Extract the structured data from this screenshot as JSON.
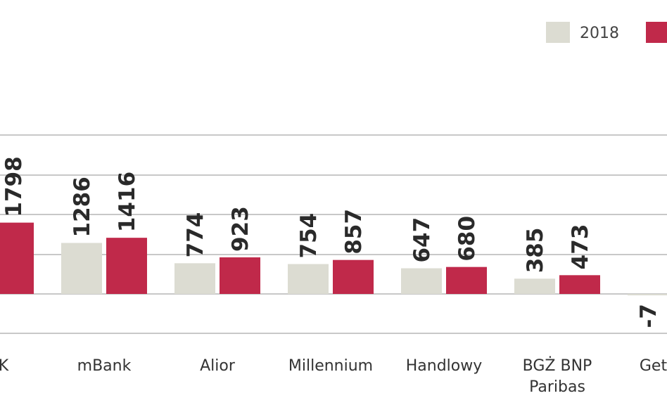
{
  "colors": {
    "s2018": "#dcdcd2",
    "s2019": "#c0294a",
    "grid": "#c8c8c8"
  },
  "chart_data": {
    "type": "bar",
    "title": "",
    "xlabel": "",
    "ylabel": "",
    "grid": true,
    "legend_position": "top-right",
    "ylim": [
      -1000,
      4000
    ],
    "categories": [
      "PKO BP",
      "mBank",
      "Alior",
      "Millennium",
      "Handlowy",
      "BGŻ BNP Paribas",
      "Getin"
    ],
    "category_labels": [
      "…SK",
      "mBank",
      "Alior",
      "Millennium",
      "Handlowy",
      "BGŻ BNP|Paribas",
      "Getin …"
    ],
    "series": [
      {
        "name": "2018",
        "values": [
          null,
          1286,
          774,
          754,
          647,
          385,
          -7
        ],
        "labels": [
          "",
          "1286",
          "774",
          "754",
          "647",
          "385",
          "-7"
        ]
      },
      {
        "name": "",
        "values": [
          1798,
          1416,
          923,
          857,
          680,
          473,
          null
        ],
        "labels": [
          "1798",
          "1416",
          "923",
          "857",
          "680",
          "473",
          ""
        ]
      }
    ]
  }
}
